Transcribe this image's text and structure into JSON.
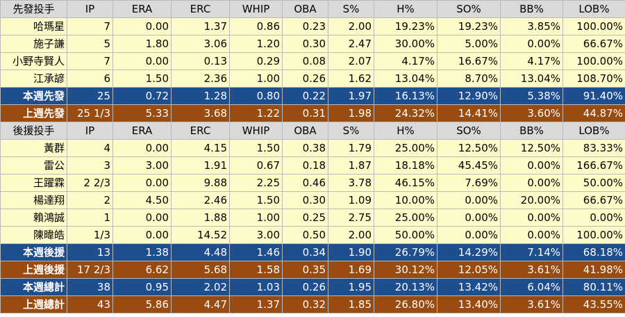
{
  "headers": {
    "starter": [
      "先發投手",
      "IP",
      "ERA",
      "ERC",
      "WHIP",
      "OBA",
      "S%",
      "H%",
      "SO%",
      "BB%",
      "LOB%"
    ],
    "reliever": [
      "後援投手",
      "IP",
      "ERA",
      "ERC",
      "WHIP",
      "OBA",
      "S%",
      "H%",
      "SO%",
      "BB%",
      "LOB%"
    ]
  },
  "starters": [
    [
      "哈瑪星",
      "7",
      "0.00",
      "1.37",
      "0.86",
      "0.23",
      "2.00",
      "19.23%",
      "19.23%",
      "3.85%",
      "100.00%"
    ],
    [
      "施子謙",
      "5",
      "1.80",
      "3.06",
      "1.20",
      "0.30",
      "2.47",
      "30.00%",
      "5.00%",
      "0.00%",
      "66.67%"
    ],
    [
      "小野寺賢人",
      "7",
      "0.00",
      "0.13",
      "0.29",
      "0.08",
      "2.07",
      "4.17%",
      "16.67%",
      "4.17%",
      "100.00%"
    ],
    [
      "江承諺",
      "6",
      "1.50",
      "2.36",
      "1.00",
      "0.26",
      "1.62",
      "13.04%",
      "8.70%",
      "13.04%",
      "108.70%"
    ]
  ],
  "starter_totals": [
    {
      "style": "blue",
      "cells": [
        "本週先發",
        "25",
        "0.72",
        "1.28",
        "0.80",
        "0.22",
        "1.97",
        "16.13%",
        "12.90%",
        "5.38%",
        "91.40%"
      ]
    },
    {
      "style": "brown",
      "cells": [
        "上週先發",
        "25 1/3",
        "5.33",
        "3.68",
        "1.22",
        "0.31",
        "1.98",
        "24.32%",
        "14.41%",
        "3.60%",
        "44.87%"
      ]
    }
  ],
  "relievers": [
    [
      "黃群",
      "4",
      "0.00",
      "4.15",
      "1.50",
      "0.38",
      "1.79",
      "25.00%",
      "12.50%",
      "12.50%",
      "83.33%"
    ],
    [
      "雷公",
      "3",
      "3.00",
      "1.91",
      "0.67",
      "0.18",
      "1.87",
      "18.18%",
      "45.45%",
      "0.00%",
      "166.67%"
    ],
    [
      "王躍霖",
      "2 2/3",
      "0.00",
      "9.88",
      "2.25",
      "0.46",
      "3.78",
      "46.15%",
      "7.69%",
      "0.00%",
      "50.00%"
    ],
    [
      "楊達翔",
      "2",
      "4.50",
      "2.46",
      "1.50",
      "0.30",
      "1.09",
      "10.00%",
      "0.00%",
      "20.00%",
      "66.67%"
    ],
    [
      "賴鴻誠",
      "1",
      "0.00",
      "1.88",
      "1.00",
      "0.25",
      "2.75",
      "25.00%",
      "0.00%",
      "0.00%",
      "0.00%"
    ],
    [
      "陳暐皓",
      "1/3",
      "0.00",
      "14.52",
      "3.00",
      "0.50",
      "2.00",
      "50.00%",
      "0.00%",
      "0.00%",
      "100.00%"
    ]
  ],
  "reliever_totals": [
    {
      "style": "blue",
      "cells": [
        "本週後援",
        "13",
        "1.38",
        "4.48",
        "1.46",
        "0.34",
        "1.90",
        "26.79%",
        "14.29%",
        "7.14%",
        "68.18%"
      ]
    },
    {
      "style": "brown",
      "cells": [
        "上週後援",
        "17 2/3",
        "6.62",
        "5.68",
        "1.58",
        "0.35",
        "1.69",
        "30.12%",
        "12.05%",
        "3.61%",
        "41.98%"
      ]
    },
    {
      "style": "blue",
      "cells": [
        "本週總計",
        "38",
        "0.95",
        "2.02",
        "1.03",
        "0.26",
        "1.95",
        "20.13%",
        "13.42%",
        "6.04%",
        "80.11%"
      ]
    },
    {
      "style": "brown",
      "cells": [
        "上週總計",
        "43",
        "5.86",
        "4.47",
        "1.37",
        "0.32",
        "1.85",
        "26.80%",
        "13.40%",
        "3.61%",
        "43.55%"
      ]
    }
  ],
  "colors": {
    "header_bg": "#d9d9d9",
    "row_bg": "#fdfbc8",
    "this_week_bg": "#1f4e8f",
    "last_week_bg": "#9a4b10"
  }
}
